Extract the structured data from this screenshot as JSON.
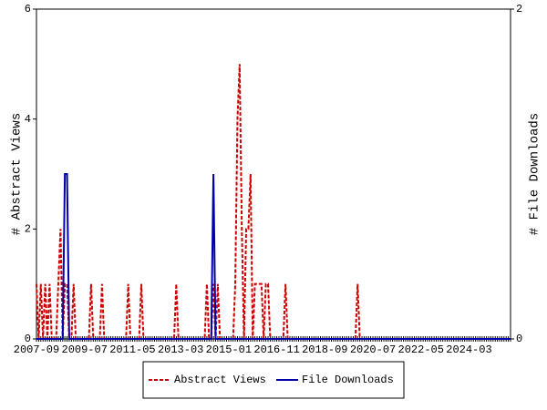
{
  "chart_data": {
    "type": "line",
    "ylabel": "# Abstract Views",
    "y2label": "# File Downloads",
    "categories": [
      "2007-09",
      null,
      null,
      null,
      null,
      null,
      null,
      null,
      null,
      null,
      null,
      null,
      null,
      null,
      null,
      null,
      null,
      null,
      null,
      null,
      null,
      null,
      "2009-07",
      null,
      null,
      null,
      null,
      null,
      null,
      null,
      null,
      null,
      null,
      null,
      null,
      null,
      null,
      null,
      null,
      null,
      null,
      null,
      null,
      null,
      "2011-05",
      null,
      null,
      null,
      null,
      null,
      null,
      null,
      null,
      null,
      null,
      null,
      null,
      null,
      null,
      null,
      null,
      null,
      null,
      null,
      null,
      null,
      "2013-03",
      null,
      null,
      null,
      null,
      null,
      null,
      null,
      null,
      null,
      null,
      null,
      null,
      null,
      null,
      null,
      null,
      null,
      null,
      null,
      null,
      null,
      "2015-01",
      null,
      null,
      null,
      null,
      null,
      null,
      null,
      null,
      null,
      null,
      null,
      null,
      null,
      null,
      null,
      null,
      null,
      null,
      null,
      null,
      null,
      "2016-11",
      null,
      null,
      null,
      null,
      null,
      null,
      null,
      null,
      null,
      null,
      null,
      null,
      null,
      null,
      null,
      null,
      null,
      null,
      null,
      null,
      null,
      "2018-09",
      null,
      null,
      null,
      null,
      null,
      null,
      null,
      null,
      null,
      null,
      null,
      null,
      null,
      null,
      null,
      null,
      null,
      null,
      null,
      null,
      null,
      "2020-07",
      null,
      null,
      null,
      null,
      null,
      null,
      null,
      null,
      null,
      null,
      null,
      null,
      null,
      null,
      null,
      null,
      null,
      null,
      null,
      null,
      null,
      "2022-05",
      null,
      null,
      null,
      null,
      null,
      null,
      null,
      null,
      null,
      null,
      null,
      null,
      null,
      null,
      null,
      null,
      null,
      null,
      null,
      null,
      null,
      "2024-03",
      null,
      null,
      null,
      null,
      null,
      null,
      null,
      null,
      null,
      null,
      null,
      null,
      null,
      null,
      null,
      null,
      null,
      null,
      null
    ],
    "series": [
      {
        "name": "Abstract Views",
        "color": "#cc0000",
        "dash": true,
        "values": [
          1,
          0,
          1,
          0,
          1,
          0,
          1,
          0,
          0,
          0,
          1,
          2,
          0,
          1,
          1,
          0,
          0,
          1,
          0,
          0,
          0,
          0,
          0,
          0,
          0,
          1,
          0,
          0,
          0,
          0,
          1,
          0,
          0,
          0,
          0,
          0,
          0,
          0,
          0,
          0,
          0,
          0,
          1,
          0,
          0,
          0,
          0,
          0,
          1,
          0,
          0,
          0,
          0,
          0,
          0,
          0,
          0,
          0,
          0,
          0,
          0,
          0,
          0,
          0,
          1,
          0,
          0,
          0,
          0,
          0,
          0,
          0,
          0,
          0,
          0,
          0,
          0,
          0,
          1,
          0,
          0,
          1,
          0,
          1,
          0,
          0,
          0,
          0,
          0,
          0,
          0,
          1,
          4,
          5,
          2,
          0,
          2,
          2,
          3,
          0,
          1,
          1,
          1,
          1,
          0,
          1,
          1,
          0,
          0,
          0,
          0,
          0,
          0,
          0,
          1,
          0,
          0,
          0,
          0,
          0,
          0,
          0,
          0,
          0,
          0,
          0,
          0,
          0,
          0,
          0,
          0,
          0,
          0,
          0,
          0,
          0,
          0,
          0,
          0,
          0,
          0,
          0,
          0,
          0,
          0,
          0,
          0,
          1,
          0,
          0,
          0,
          0,
          0,
          0,
          0,
          0,
          0,
          0,
          0,
          0,
          0,
          0,
          0,
          0,
          0,
          0,
          0,
          0,
          0,
          0,
          0,
          0,
          0,
          0,
          0,
          0,
          0,
          0,
          0,
          0,
          0,
          0,
          0,
          0,
          0,
          0,
          0,
          0,
          0,
          0,
          0,
          0,
          0,
          0,
          0,
          0,
          0,
          0,
          0,
          0,
          0,
          0,
          0,
          0,
          0,
          0,
          0,
          0,
          0,
          0,
          0,
          0,
          0,
          0,
          0,
          0,
          0,
          0
        ]
      },
      {
        "name": "File Downloads",
        "color": "#0000aa",
        "axis": "y2",
        "values": [
          0,
          0,
          0,
          0,
          0,
          0,
          0,
          0,
          0,
          0,
          0,
          0,
          0,
          1,
          1,
          0,
          0,
          0,
          0,
          0,
          0,
          0,
          0,
          0,
          0,
          0,
          0,
          0,
          0,
          0,
          0,
          0,
          0,
          0,
          0,
          0,
          0,
          0,
          0,
          0,
          0,
          0,
          0,
          0,
          0,
          0,
          0,
          0,
          0,
          0,
          0,
          0,
          0,
          0,
          0,
          0,
          0,
          0,
          0,
          0,
          0,
          0,
          0,
          0,
          0,
          0,
          0,
          0,
          0,
          0,
          0,
          0,
          0,
          0,
          0,
          0,
          0,
          0,
          0,
          0,
          0,
          1,
          0,
          0,
          0,
          0,
          0,
          0,
          0,
          0,
          0,
          0,
          0,
          0,
          0,
          0,
          0,
          0,
          0,
          0,
          0,
          0,
          0,
          0,
          0,
          0,
          0,
          0,
          0,
          0,
          0,
          0,
          0,
          0,
          0,
          0,
          0,
          0,
          0,
          0,
          0,
          0,
          0,
          0,
          0,
          0,
          0,
          0,
          0,
          0,
          0,
          0,
          0,
          0,
          0,
          0,
          0,
          0,
          0,
          0,
          0,
          0,
          0,
          0,
          0,
          0,
          0,
          0,
          0,
          0,
          0,
          0,
          0,
          0,
          0,
          0,
          0,
          0,
          0,
          0,
          0,
          0,
          0,
          0,
          0,
          0,
          0,
          0,
          0,
          0,
          0,
          0,
          0,
          0,
          0,
          0,
          0,
          0,
          0,
          0,
          0,
          0,
          0,
          0,
          0,
          0,
          0,
          0,
          0,
          0,
          0,
          0,
          0,
          0,
          0,
          0,
          0,
          0,
          0,
          0,
          0,
          0,
          0,
          0,
          0,
          0,
          0,
          0,
          0,
          0,
          0,
          0,
          0,
          0,
          0,
          0,
          0,
          0
        ]
      }
    ],
    "ylim": [
      0,
      6
    ],
    "yticks": [
      0,
      2,
      4,
      6
    ],
    "y2lim": [
      0,
      2
    ],
    "y2ticks": [
      0,
      2
    ],
    "legend": "bottom"
  }
}
